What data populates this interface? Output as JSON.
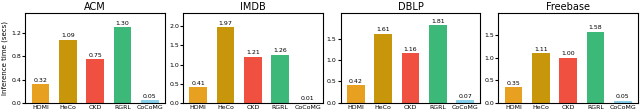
{
  "chart_data": [
    {
      "type": "bar",
      "title": "ACM",
      "ylabel": "Inference time (secs)",
      "categories": [
        "HDMI",
        "HeCo",
        "CKD",
        "RGRL",
        "CoCoMG"
      ],
      "values": [
        0.32,
        1.09,
        0.75,
        1.3,
        0.05
      ],
      "value_labels": [
        "0.32",
        "1.09",
        "0.75",
        "1.30",
        "0.05"
      ],
      "colors": [
        "#E8A020",
        "#C8960A",
        "#F05040",
        "#3CB878",
        "#87CEEB"
      ],
      "ylim": [
        0.0,
        1.55
      ],
      "yticks": [
        0.0,
        0.4,
        0.8,
        1.2
      ],
      "data_labels": true
    },
    {
      "type": "bar",
      "title": "IMDB",
      "categories": [
        "HDMI",
        "HeCo",
        "CKD",
        "RGRL",
        "CoCoMG"
      ],
      "values": [
        0.41,
        1.97,
        1.21,
        1.26,
        0.01
      ],
      "value_labels": [
        "0.41",
        "1.97",
        "1.21",
        "1.26",
        "0.01"
      ],
      "colors": [
        "#E8A020",
        "#C8960A",
        "#F05040",
        "#3CB878",
        "#87CEEB"
      ],
      "ylim": [
        0.0,
        2.35
      ],
      "yticks": [
        0.0,
        0.5,
        1.0,
        1.5,
        2.0
      ],
      "data_labels": true
    },
    {
      "type": "bar",
      "title": "DBLP",
      "categories": [
        "HDMI",
        "HeCo",
        "CKD",
        "RGRL",
        "CoCoMG"
      ],
      "values": [
        0.42,
        1.61,
        1.16,
        1.81,
        0.07
      ],
      "value_labels": [
        "0.42",
        "1.61",
        "1.16",
        "1.81",
        "0.07"
      ],
      "colors": [
        "#E8A020",
        "#C8960A",
        "#F05040",
        "#3CB878",
        "#87CEEB"
      ],
      "ylim": [
        0.0,
        2.1
      ],
      "yticks": [
        0.0,
        0.5,
        1.0,
        1.5
      ],
      "data_labels": true
    },
    {
      "type": "bar",
      "title": "Freebase",
      "categories": [
        "HDMI",
        "HeCo",
        "CKD",
        "RGRL",
        "CoCoMG"
      ],
      "values": [
        0.35,
        1.11,
        1.0,
        1.58,
        0.05
      ],
      "value_labels": [
        "0.35",
        "1.11",
        "1.00",
        "1.58",
        "0.05"
      ],
      "colors": [
        "#E8A020",
        "#C8960A",
        "#F05040",
        "#3CB878",
        "#87CEEB"
      ],
      "ylim": [
        0.0,
        2.0
      ],
      "yticks": [
        0.0,
        0.5,
        1.0,
        1.5
      ],
      "data_labels": true
    }
  ]
}
